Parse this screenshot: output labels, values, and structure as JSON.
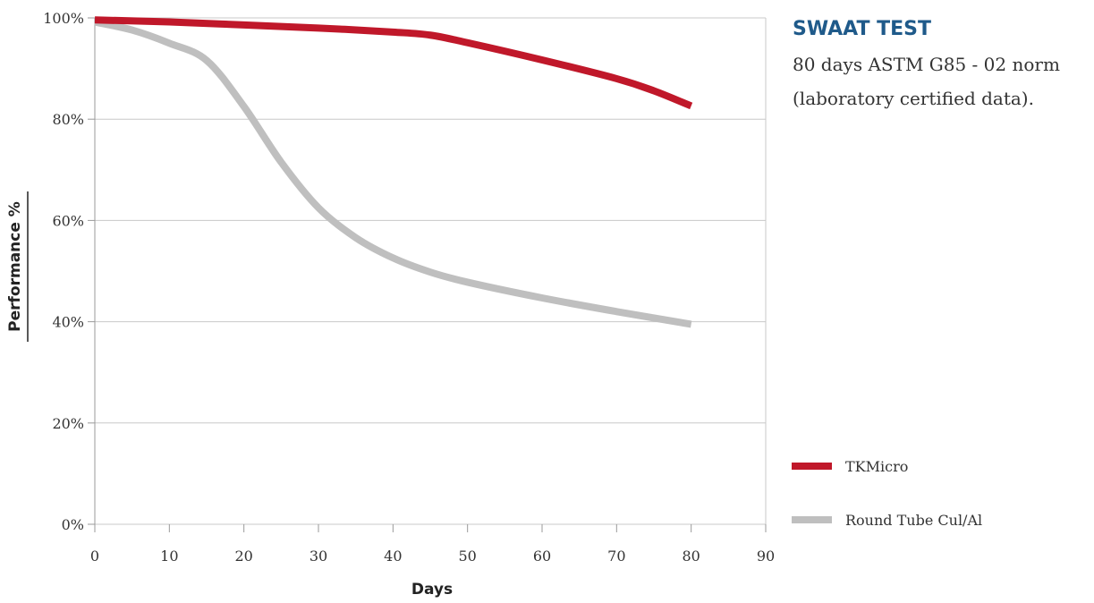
{
  "panel": {
    "title": "SWAAT TEST",
    "line1": "80 days ASTM G85 - 02 norm",
    "line2": "(laboratory certified data).",
    "title_color": "#1f5a8a"
  },
  "chart_data": {
    "type": "line",
    "xlabel": "Days",
    "ylabel": "Performance %",
    "xlim": [
      0,
      90
    ],
    "ylim": [
      0,
      100
    ],
    "x_ticks": [
      0,
      10,
      20,
      30,
      40,
      50,
      60,
      70,
      80,
      90
    ],
    "y_ticks": [
      0,
      20,
      40,
      60,
      80,
      100
    ],
    "y_tick_labels": [
      "0%",
      "20%",
      "40%",
      "60%",
      "80%",
      "100%"
    ],
    "grid": "horizontal",
    "legend_position": "right",
    "series": [
      {
        "name": "TKMicro",
        "color": "#c0182a",
        "x": [
          0,
          10,
          20,
          30,
          40,
          45,
          50,
          60,
          70,
          75,
          80
        ],
        "y": [
          99.6,
          99.2,
          98.6,
          98.0,
          97.2,
          96.6,
          95.1,
          91.7,
          88.0,
          85.6,
          82.6
        ]
      },
      {
        "name": "Round Tube Cul/Al",
        "color": "#bfbfbf",
        "x": [
          0,
          5,
          10,
          15,
          20,
          25,
          30,
          35,
          40,
          45,
          50,
          60,
          70,
          80
        ],
        "y": [
          99.2,
          97.6,
          95.0,
          91.6,
          82.5,
          71.5,
          62.5,
          56.6,
          52.6,
          49.8,
          47.8,
          44.7,
          42.0,
          39.5
        ]
      }
    ]
  }
}
